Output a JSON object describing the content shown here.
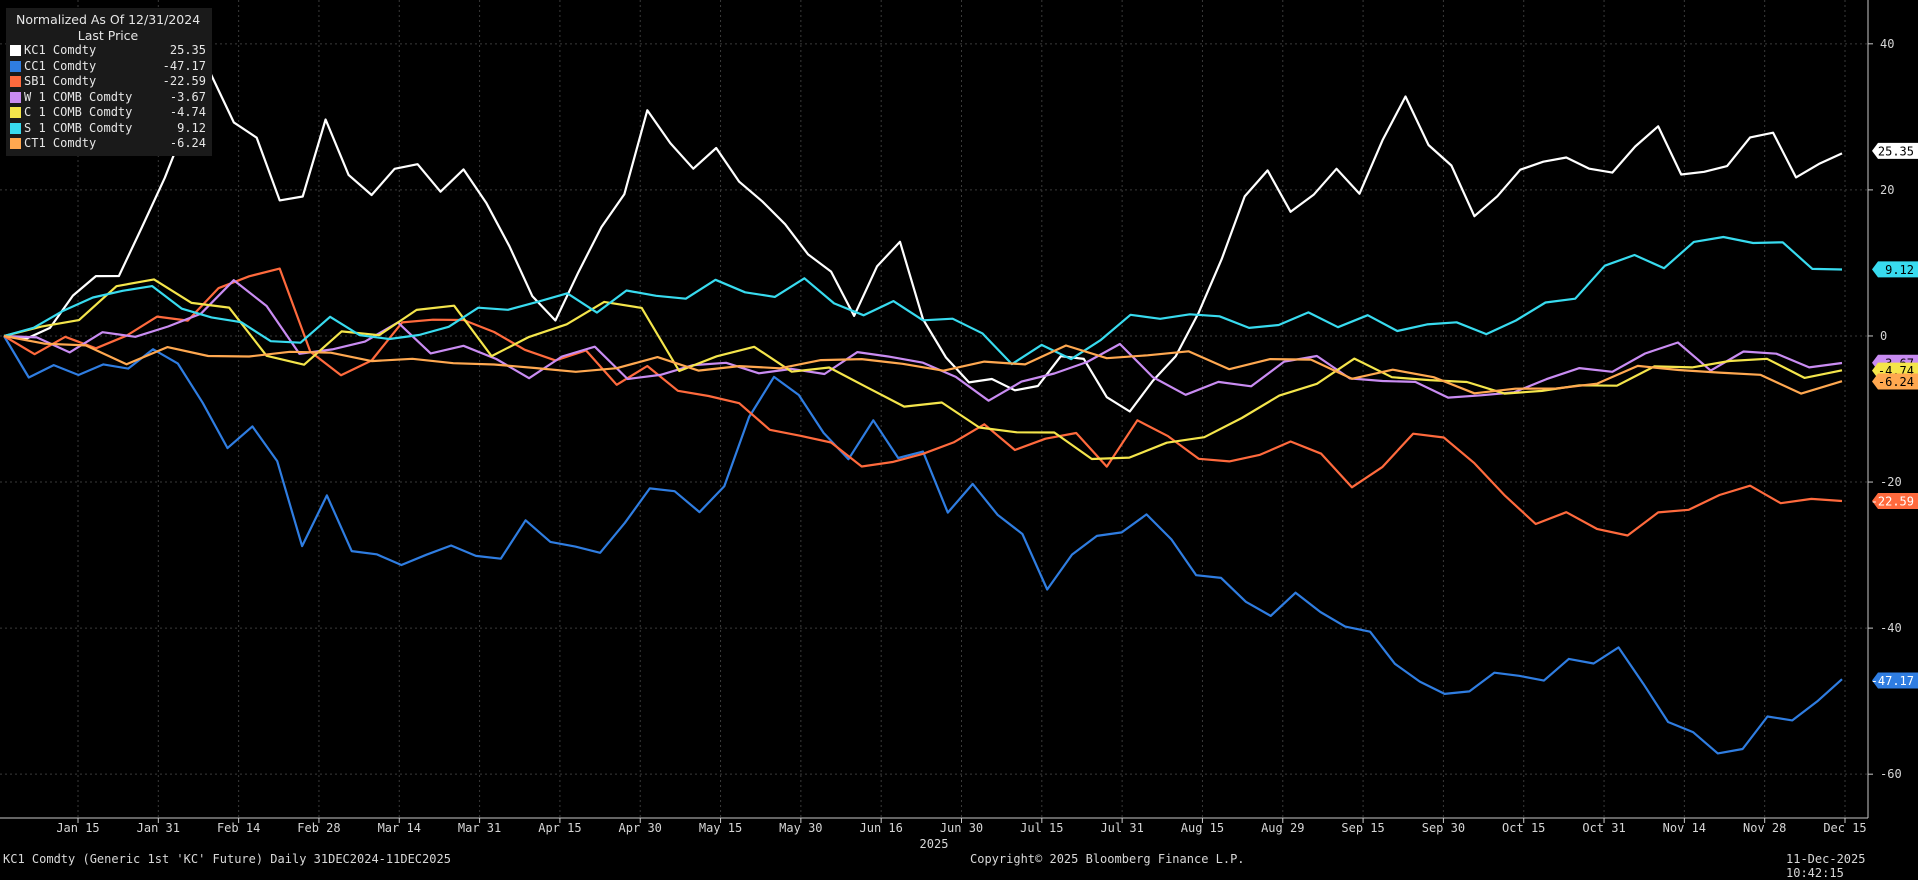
{
  "legend": {
    "header": "Normalized As Of 12/31/2024",
    "subheader": "Last Price"
  },
  "footer": {
    "left": "KC1 Comdty (Generic 1st 'KC' Future) Daily 31DEC2024-11DEC2025",
    "center": "Copyright© 2025 Bloomberg Finance L.P.",
    "right": "11-Dec-2025 10:42:15"
  },
  "chart_data": {
    "type": "line",
    "x_tick_labels": [
      "Jan 15",
      "Jan 31",
      "Feb 14",
      "Feb 28",
      "Mar 14",
      "Mar 31",
      "Apr 15",
      "Apr 30",
      "May 15",
      "May 30",
      "Jun 16",
      "Jun 30",
      "Jul 15",
      "Jul 31",
      "Aug 15",
      "Aug 29",
      "Sep 15",
      "Sep 30",
      "Oct 15",
      "Oct 31",
      "Nov 14",
      "Nov 28",
      "Dec 15"
    ],
    "x_year_label": "2025",
    "y_ticks": [
      40,
      20,
      0,
      -20,
      -40,
      -60
    ],
    "ylim": [
      -66,
      46
    ],
    "grid": true,
    "legend_position": "top-left",
    "series": [
      {
        "name": "KC1 Comdty",
        "last": "25.35",
        "color": "#ffffff",
        "values": [
          0,
          -1,
          2,
          5,
          8,
          9,
          14,
          22,
          30,
          35,
          30,
          27,
          18,
          20,
          29,
          22,
          20,
          22,
          24,
          20,
          22,
          19,
          12,
          5,
          3,
          8,
          15,
          20,
          30,
          27,
          23,
          25,
          22,
          18,
          15,
          12,
          8,
          3,
          10,
          12,
          3,
          -3,
          -7,
          -5,
          -8,
          -7,
          -2,
          -4,
          -8,
          -10,
          -7,
          -2,
          3,
          10,
          20,
          22,
          17,
          20,
          22,
          20,
          27,
          32,
          27,
          23,
          16,
          20,
          22,
          24,
          25,
          22,
          23,
          26,
          28,
          23,
          22,
          23,
          28,
          27,
          22,
          24,
          25
        ]
      },
      {
        "name": "CC1 Comdty",
        "last": "-47.17",
        "color": "#2f7de1",
        "values": [
          0,
          -5,
          -4,
          -6,
          -3,
          -5,
          -2,
          -3,
          -10,
          -15,
          -12,
          -18,
          -28,
          -22,
          -30,
          -29,
          -32,
          -30,
          -28,
          -31,
          -30,
          -25,
          -29,
          -28,
          -30,
          -26,
          -20,
          -22,
          -24,
          -20,
          -12,
          -5,
          -8,
          -14,
          -16,
          -12,
          -17,
          -15,
          -25,
          -20,
          -24,
          -28,
          -34,
          -30,
          -28,
          -26,
          -25,
          -28,
          -32,
          -34,
          -36,
          -38,
          -36,
          -37,
          -40,
          -41,
          -44,
          -48,
          -49,
          -48,
          -47,
          -46,
          -47,
          -45,
          -44,
          -43,
          -48,
          -52,
          -55,
          -57,
          -56,
          -53,
          -52,
          -50,
          -47
        ]
      },
      {
        "name": "SB1 Comdty",
        "last": "-22.59",
        "color": "#ff6a3d",
        "values": [
          0,
          -2,
          -1,
          -1,
          0,
          2,
          3,
          6,
          8,
          10,
          -3,
          -5,
          -3,
          1,
          3,
          2,
          0,
          -1,
          -4,
          -2,
          -6,
          -5,
          -7,
          -8,
          -10,
          -12,
          -14,
          -15,
          -17,
          -18,
          -16,
          -14,
          -13,
          -15,
          -14,
          -14,
          -17,
          -12,
          -14,
          -16,
          -18,
          -16,
          -14,
          -17,
          -20,
          -18,
          -14,
          -13,
          -18,
          -22,
          -25,
          -25,
          -26,
          -27,
          -25,
          -23,
          -22,
          -21,
          -22,
          -23,
          -22.6
        ]
      },
      {
        "name": "W 1 COMB Comdty",
        "last": "-3.67",
        "color": "#c98cf2",
        "values": [
          0,
          -1,
          -2,
          1,
          -1,
          2,
          3,
          7,
          5,
          -3,
          -2,
          0,
          1,
          -2,
          -1,
          -4,
          -5,
          -3,
          -2,
          -5,
          -6,
          -4,
          -3,
          -6,
          -4,
          -5,
          -3,
          -2,
          -4,
          -6,
          -8,
          -7,
          -5,
          -3,
          -2,
          -5,
          -8,
          -7,
          -6,
          -4,
          -3,
          -5,
          -7,
          -6,
          -8,
          -9,
          -7,
          -6,
          -5,
          -4,
          -3,
          -1,
          -4,
          -3,
          -2,
          -4,
          -3.7
        ]
      },
      {
        "name": "C 1 COMB Comdty",
        "last": "-4.74",
        "color": "#f4e54b",
        "values": [
          0,
          1,
          3,
          6,
          8,
          5,
          3,
          -2,
          -4,
          0,
          1,
          3,
          4,
          -2,
          -1,
          2,
          5,
          3,
          -4,
          -3,
          -2,
          -4,
          -5,
          -7,
          -9,
          -10,
          -12,
          -13,
          -14,
          -16,
          -17,
          -15,
          -13,
          -12,
          -8,
          -6,
          -4,
          -5,
          -6,
          -7,
          -7,
          -8,
          -7,
          -6,
          -5,
          -4,
          -3,
          -4,
          -5,
          -4.7
        ]
      },
      {
        "name": "S 1 COMB Comdty",
        "last": "9.12",
        "color": "#38dbef",
        "values": [
          0,
          2,
          3,
          5,
          7,
          6,
          4,
          3,
          1,
          0,
          -1,
          2,
          1,
          -1,
          0,
          2,
          3,
          4,
          5,
          5,
          4,
          6,
          5,
          6,
          7,
          6,
          6,
          7,
          5,
          3,
          4,
          3,
          2,
          0,
          -3,
          -2,
          -3,
          0,
          2,
          3,
          3,
          2,
          2,
          1,
          3,
          2,
          2,
          1,
          2,
          1,
          1,
          2,
          4,
          6,
          9,
          11,
          10,
          12,
          14,
          13,
          12,
          10,
          9.1
        ]
      },
      {
        "name": "CT1 Comdty",
        "last": "-6.24",
        "color": "#ffa850",
        "values": [
          0,
          -1,
          -2,
          -3,
          -2,
          -3,
          -2,
          -3,
          -2,
          -3,
          -4,
          -3,
          -4,
          -5,
          -4,
          -5,
          -3,
          -4,
          -5,
          -4,
          -3,
          -4,
          -3,
          -5,
          -4,
          -3,
          -2,
          -3,
          -2,
          -3,
          -4,
          -3,
          -4,
          -5,
          -5,
          -6,
          -7,
          -8,
          -7,
          -6,
          -5,
          -4,
          -5,
          -6,
          -7,
          -6.2
        ]
      }
    ]
  }
}
